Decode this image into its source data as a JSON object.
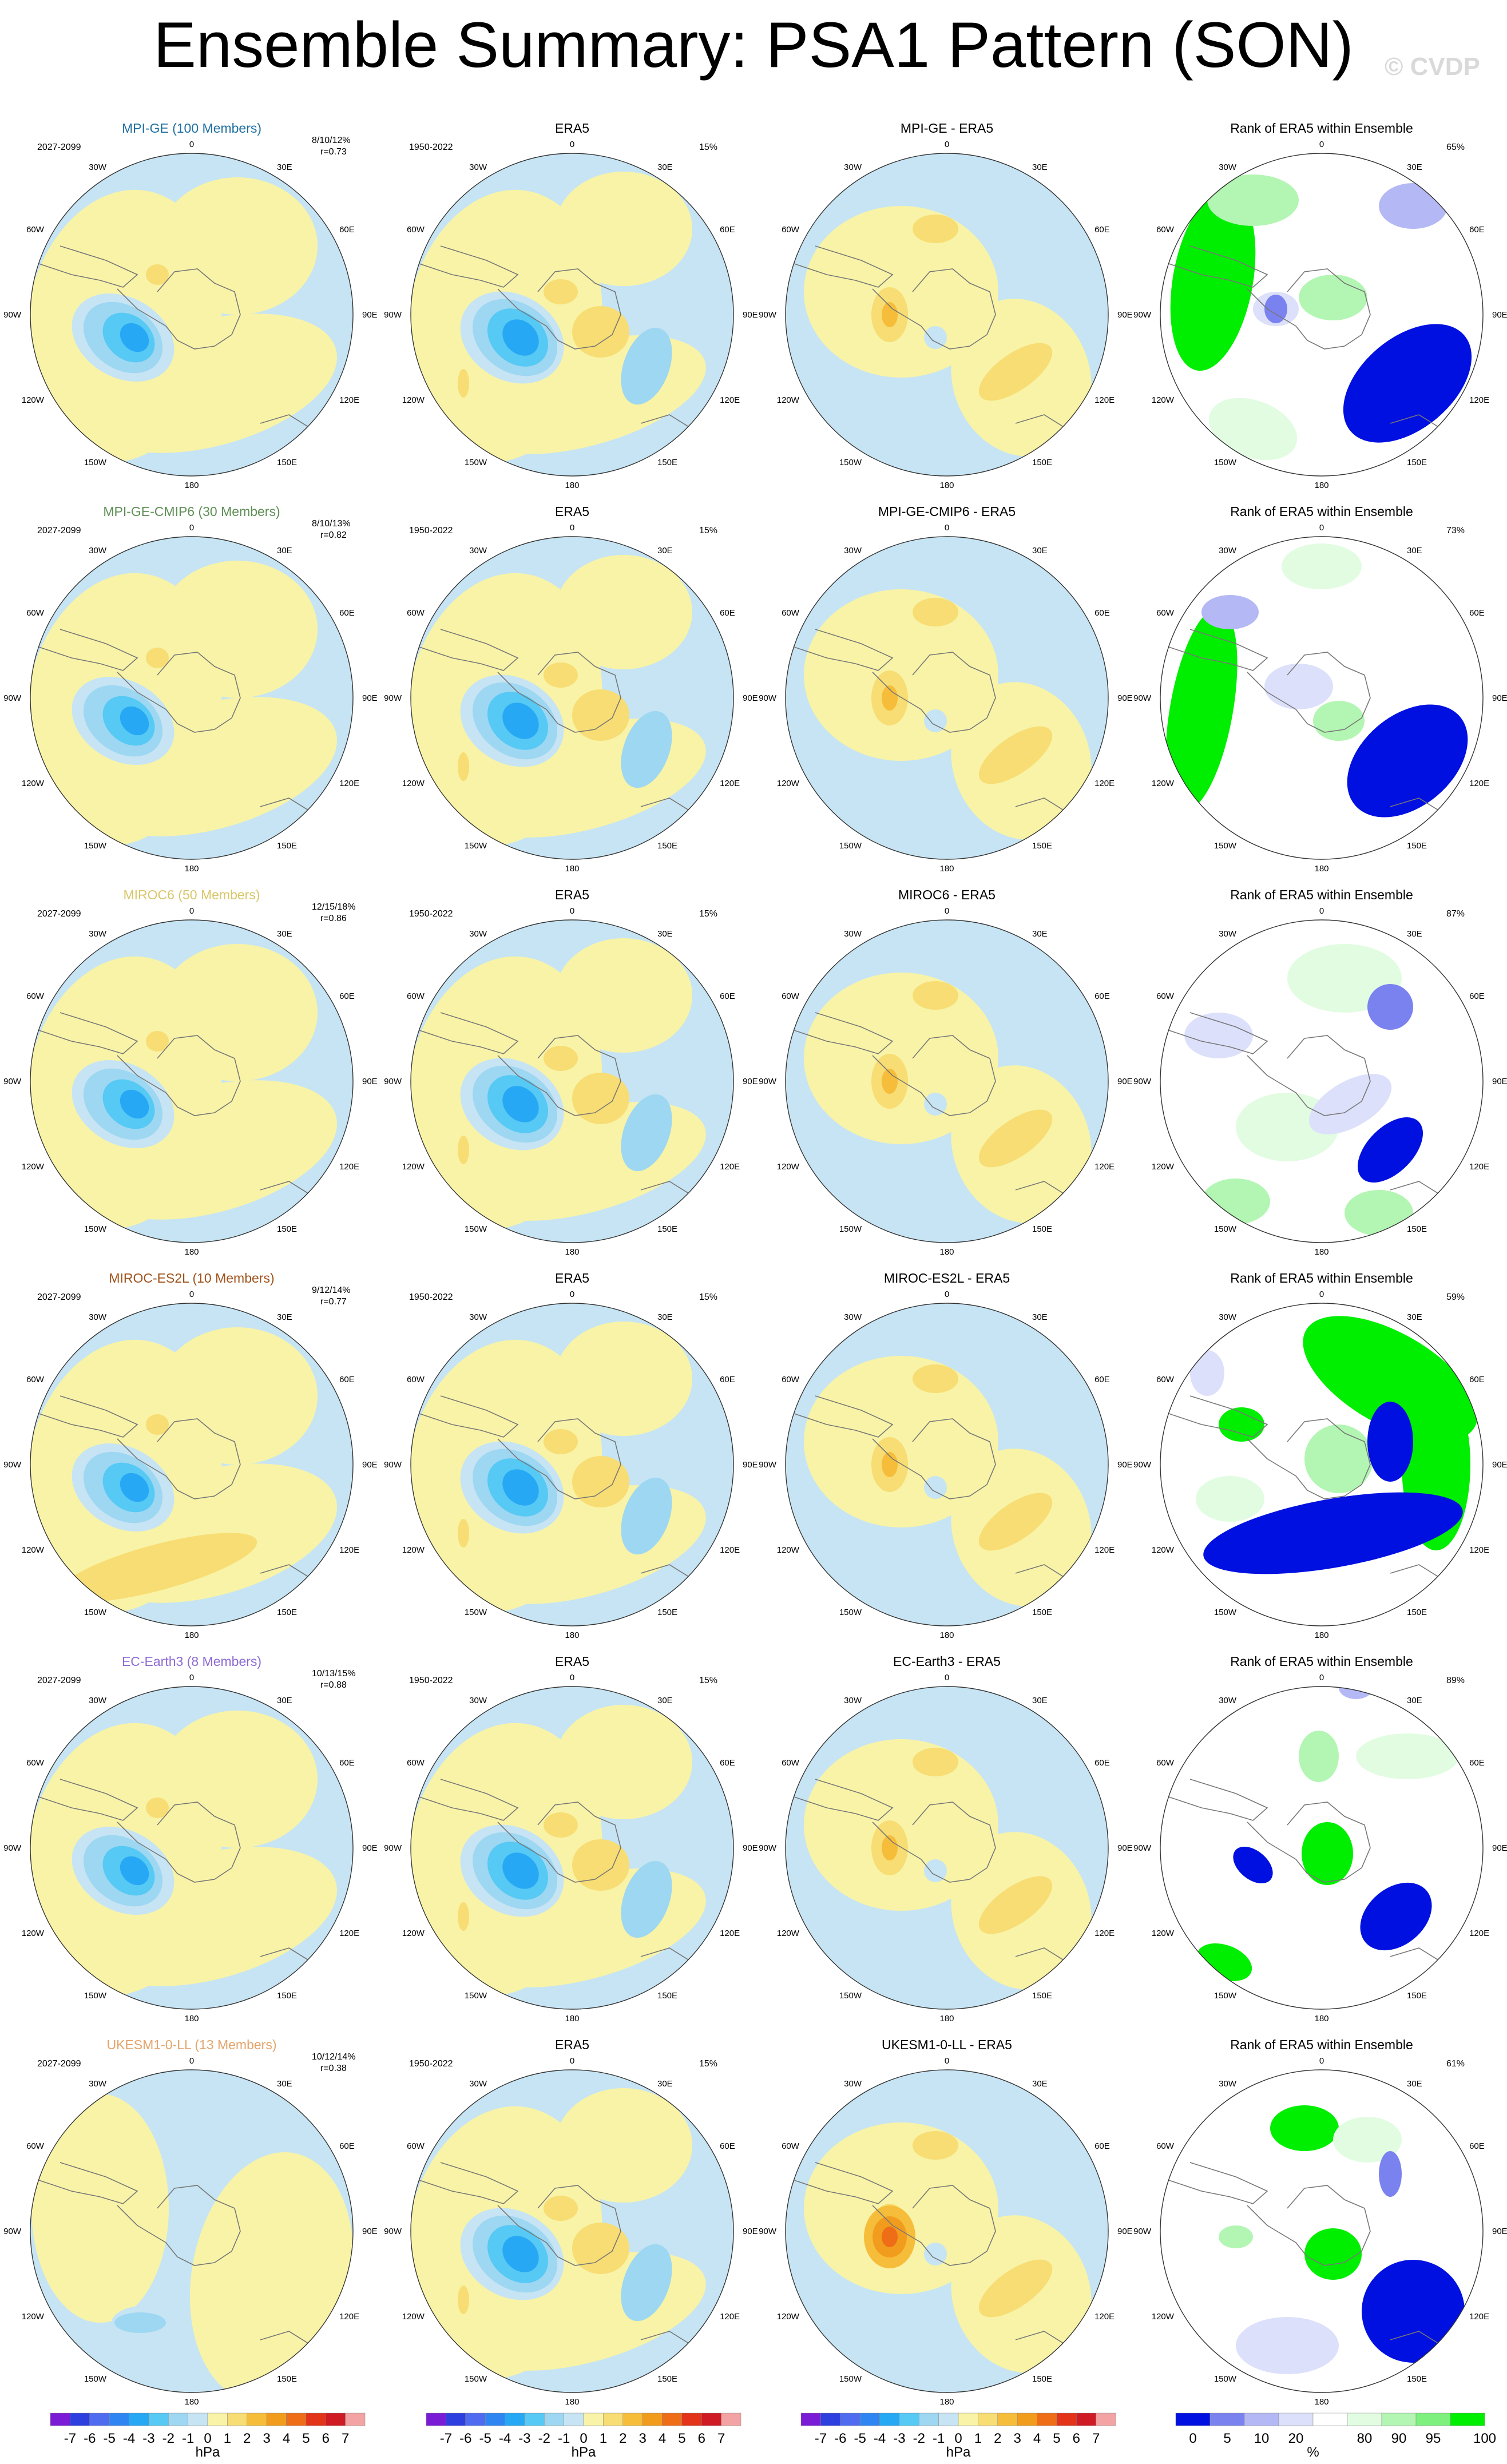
{
  "title": "Ensemble Summary: PSA1 Pattern (SON)",
  "watermark": "© CVDP",
  "lon_labels": [
    "0",
    "30E",
    "60E",
    "90E",
    "120E",
    "150E",
    "180",
    "150W",
    "120W",
    "90W",
    "60W",
    "30W"
  ],
  "colors": {
    "model_title": [
      "#1f6fa0",
      "#5f8f56",
      "#d8c66a",
      "#a0521c",
      "#8c6bd3",
      "#e3a46b"
    ],
    "diverging": [
      "#7a1bd6",
      "#2e3fe0",
      "#4f6cf0",
      "#2f86f2",
      "#27a8f5",
      "#56c9f4",
      "#9ed7f2",
      "#c6e4f3",
      "#f8f3a7",
      "#f7dd73",
      "#f6bd3b",
      "#f29c1d",
      "#ef6d17",
      "#e33318",
      "#cf1b24",
      "#f3a3a3"
    ],
    "rank": [
      "#0010e0",
      "#7a82f0",
      "#b4b8f5",
      "#dde0fa",
      "#ffffff",
      "#e2fce2",
      "#b3f6b3",
      "#7df07d",
      "#00ee00"
    ]
  },
  "rows": [
    {
      "model": "MPI-GE (100 Members)",
      "period": "2027-2099",
      "stats": "8/10/12%",
      "r": "r=0.73",
      "era_period": "1950-2022",
      "era_pct": "15%",
      "diff_title": "MPI-GE - ERA5",
      "rank_pct": "65%"
    },
    {
      "model": "MPI-GE-CMIP6 (30 Members)",
      "period": "2027-2099",
      "stats": "8/10/13%",
      "r": "r=0.82",
      "era_period": "1950-2022",
      "era_pct": "15%",
      "diff_title": "MPI-GE-CMIP6 - ERA5",
      "rank_pct": "73%"
    },
    {
      "model": "MIROC6 (50 Members)",
      "period": "2027-2099",
      "stats": "12/15/18%",
      "r": "r=0.86",
      "era_period": "1950-2022",
      "era_pct": "15%",
      "diff_title": "MIROC6 - ERA5",
      "rank_pct": "87%"
    },
    {
      "model": "MIROC-ES2L (10 Members)",
      "period": "2027-2099",
      "stats": "9/12/14%",
      "r": "r=0.77",
      "era_period": "1950-2022",
      "era_pct": "15%",
      "diff_title": "MIROC-ES2L - ERA5",
      "rank_pct": "59%"
    },
    {
      "model": "EC-Earth3 (8 Members)",
      "period": "2027-2099",
      "stats": "10/13/15%",
      "r": "r=0.88",
      "era_period": "1950-2022",
      "era_pct": "15%",
      "diff_title": "EC-Earth3 - ERA5",
      "rank_pct": "89%"
    },
    {
      "model": "UKESM1-0-LL (13 Members)",
      "period": "2027-2099",
      "stats": "10/12/14%",
      "r": "r=0.38",
      "era_period": "1950-2022",
      "era_pct": "15%",
      "diff_title": "UKESM1-0-LL - ERA5",
      "rank_pct": "61%"
    }
  ],
  "era_title": "ERA5",
  "rank_title": "Rank of ERA5 within Ensemble",
  "colorbar": {
    "diverging_labels": [
      "-7",
      "-6",
      "-5",
      "-4",
      "-3",
      "-2",
      "-1",
      "0",
      "1",
      "2",
      "3",
      "4",
      "5",
      "6",
      "7"
    ],
    "unit": "hPa",
    "rank_labels": [
      "0",
      "5",
      "10",
      "20",
      "80",
      "90",
      "95",
      "100"
    ],
    "rank_unit": "%"
  },
  "chart_data": {
    "type": "heatmap",
    "title": "Ensemble Summary: PSA1 Pattern (SON)",
    "projection": "south polar stereographic",
    "columns": [
      "model ensemble mean",
      "ERA5",
      "model - ERA5",
      "Rank of ERA5 within Ensemble"
    ],
    "contour_levels_hPa": [
      -7,
      -6,
      -5,
      -4,
      -3,
      -2,
      -1,
      0,
      1,
      2,
      3,
      4,
      5,
      6,
      7
    ],
    "rank_levels_pct": [
      0,
      5,
      10,
      20,
      80,
      90,
      95,
      100
    ]
  }
}
